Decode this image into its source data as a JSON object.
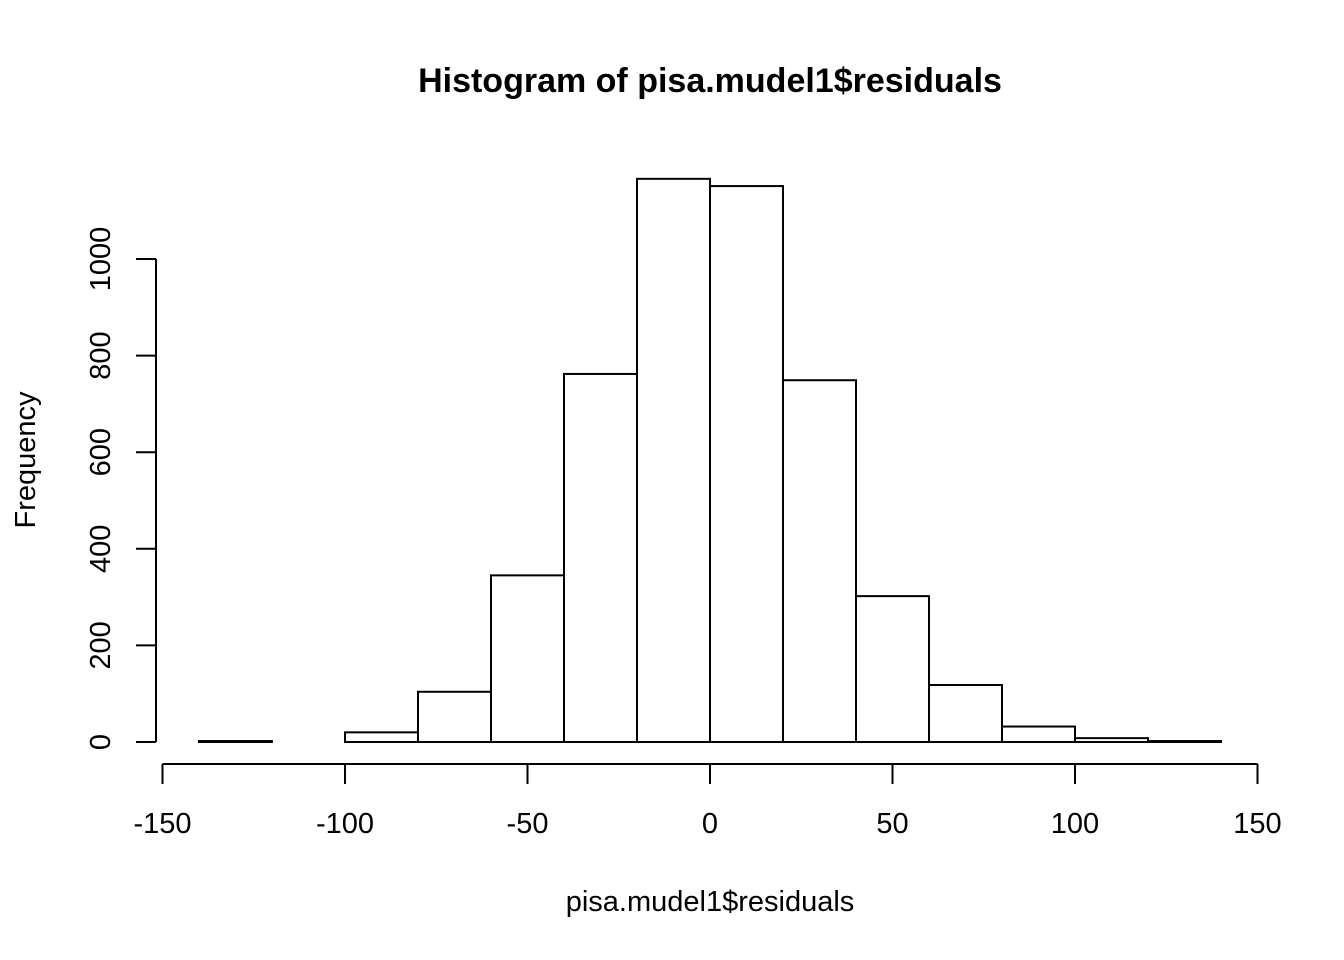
{
  "chart_data": {
    "type": "bar",
    "title": "Histogram of pisa.mudel1$residuals",
    "xlabel": "pisa.mudel1$residuals",
    "ylabel": "Frequency",
    "bins": [
      {
        "x0": -140,
        "x1": -120,
        "count": 2
      },
      {
        "x0": -120,
        "x1": -100,
        "count": 0
      },
      {
        "x0": -100,
        "x1": -80,
        "count": 20
      },
      {
        "x0": -80,
        "x1": -60,
        "count": 104
      },
      {
        "x0": -60,
        "x1": -40,
        "count": 345
      },
      {
        "x0": -40,
        "x1": -20,
        "count": 762
      },
      {
        "x0": -20,
        "x1": 0,
        "count": 1166
      },
      {
        "x0": 0,
        "x1": 20,
        "count": 1151
      },
      {
        "x0": 20,
        "x1": 40,
        "count": 749
      },
      {
        "x0": 40,
        "x1": 60,
        "count": 302
      },
      {
        "x0": 60,
        "x1": 80,
        "count": 118
      },
      {
        "x0": 80,
        "x1": 100,
        "count": 32
      },
      {
        "x0": 100,
        "x1": 120,
        "count": 8
      },
      {
        "x0": 120,
        "x1": 140,
        "count": 2
      }
    ],
    "xticks": [
      -150,
      -100,
      -50,
      0,
      50,
      100,
      150
    ],
    "xtick_labels": [
      "-150",
      "-100",
      "-50",
      "0",
      "50",
      "100",
      "150"
    ],
    "yticks": [
      0,
      200,
      400,
      600,
      800,
      1000
    ],
    "ytick_labels": [
      "0",
      "200",
      "400",
      "600",
      "800",
      "1000"
    ],
    "xlim": [
      -150,
      150
    ],
    "ylim": [
      0,
      1200
    ],
    "grid": false,
    "colors": {
      "bar_fill": "#ffffff",
      "bar_stroke": "#000000"
    }
  }
}
